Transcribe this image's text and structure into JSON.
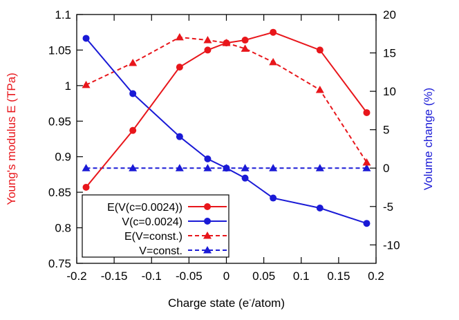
{
  "chart_data": {
    "type": "line",
    "x_axis": {
      "label_prefix": "Charge state (e",
      "label_sup": "-",
      "label_suffix": "/atom)",
      "range": [
        -0.2,
        0.2
      ],
      "ticks": [
        -0.2,
        -0.15,
        -0.1,
        -0.05,
        0,
        0.05,
        0.1,
        0.15,
        0.2
      ],
      "tick_labels": [
        "-0.2",
        "-0.15",
        "-0.1",
        "-0.05",
        "0",
        "0.05",
        "0.1",
        "0.15",
        "0.2"
      ]
    },
    "y_left": {
      "label": "Young's modulus E (TPa)",
      "color": "#e8161b",
      "range": [
        0.75,
        1.1
      ],
      "ticks": [
        0.75,
        0.8,
        0.85,
        0.9,
        0.95,
        1.0,
        1.05,
        1.1
      ],
      "tick_labels": [
        "0.75",
        "0.8",
        "0.85",
        "0.9",
        "0.95",
        "1",
        "1.05",
        "1.1"
      ]
    },
    "y_right": {
      "label": "Volume change (%)",
      "color": "#1a1ad6",
      "range": [
        -12.4,
        20
      ],
      "ticks": [
        -10,
        -5,
        0,
        5,
        10,
        15,
        20
      ],
      "tick_labels": [
        "-10",
        "-5",
        "0",
        "5",
        "10",
        "15",
        "20"
      ]
    },
    "series": [
      {
        "name": "E(V(c=0.0024))",
        "axis": "left",
        "color": "#e8161b",
        "dash": "solid",
        "marker": "circle",
        "x": [
          -0.1875,
          -0.125,
          -0.0625,
          -0.025,
          0,
          0.025,
          0.0625,
          0.125,
          0.1875
        ],
        "y": [
          0.857,
          0.937,
          1.026,
          1.05,
          1.06,
          1.064,
          1.075,
          1.05,
          0.962
        ]
      },
      {
        "name": "V(c=0.0024)",
        "axis": "right",
        "color": "#1a1ad6",
        "dash": "solid",
        "marker": "circle",
        "x": [
          -0.1875,
          -0.125,
          -0.0625,
          -0.025,
          0,
          0.025,
          0.0625,
          0.125,
          0.1875
        ],
        "y": [
          16.9,
          9.7,
          4.1,
          1.2,
          0,
          -1.3,
          -3.9,
          -5.2,
          -7.2
        ]
      },
      {
        "name": "E(V=const.)",
        "axis": "left",
        "color": "#e8161b",
        "dash": "dashed",
        "marker": "triangle",
        "x": [
          -0.1875,
          -0.125,
          -0.0625,
          -0.025,
          0,
          0.025,
          0.0625,
          0.125,
          0.1875
        ],
        "y": [
          1.001,
          1.032,
          1.068,
          1.064,
          1.06,
          1.052,
          1.033,
          0.994,
          0.892
        ]
      },
      {
        "name": "V=const.",
        "axis": "right",
        "color": "#1a1ad6",
        "dash": "dashed",
        "marker": "triangle",
        "x": [
          -0.1875,
          -0.125,
          -0.0625,
          -0.025,
          0,
          0.025,
          0.0625,
          0.125,
          0.1875
        ],
        "y": [
          0,
          0,
          0,
          0,
          0,
          0,
          0,
          0,
          0
        ]
      }
    ],
    "legend_position": "bottom-left"
  }
}
